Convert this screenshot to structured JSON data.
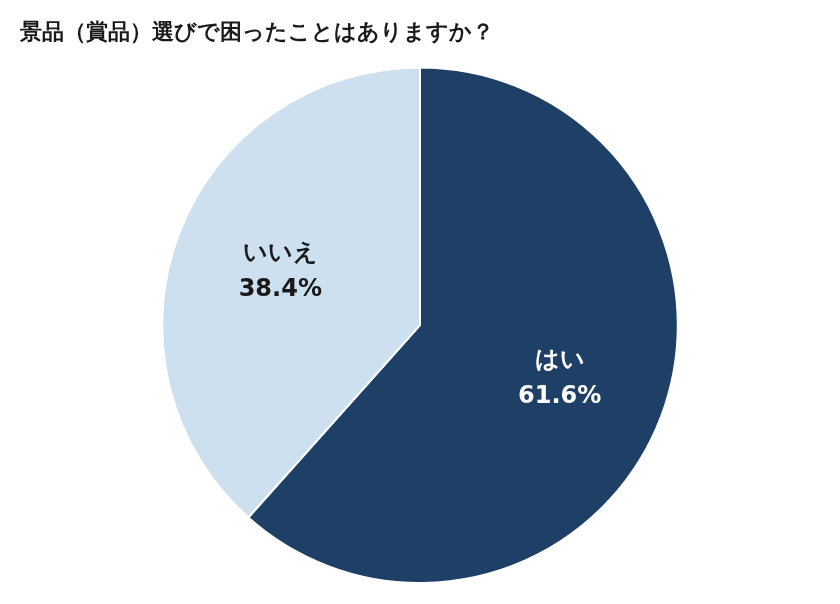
{
  "chart_data": {
    "type": "pie",
    "title": "景品（賞品）選びで困ったことはありますか？",
    "categories": [
      "はい",
      "いいえ"
    ],
    "values": [
      61.6,
      38.4
    ],
    "value_labels": [
      "61.6%",
      "38.4%"
    ],
    "colors": [
      "#1e3f66",
      "#cce0f0"
    ],
    "data_labels": true
  }
}
